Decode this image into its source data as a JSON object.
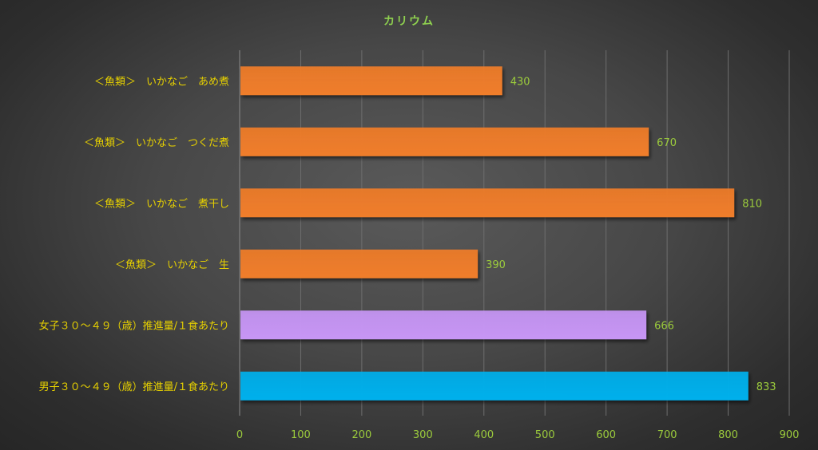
{
  "chart_data": {
    "type": "bar",
    "orientation": "horizontal",
    "title": "カリウム",
    "categories": [
      "＜魚類＞　いかなご　あめ煮",
      "＜魚類＞　いかなご　つくだ煮",
      "＜魚類＞　いかなご　煮干し",
      "＜魚類＞　いかなご　生",
      "女子３０～４９（歳）推進量/１食あたり",
      "男子３０～４９（歳）推進量/１食あたり"
    ],
    "values": [
      430,
      670,
      810,
      390,
      666,
      833
    ],
    "bar_colors": [
      "#f07d2a",
      "#f07d2a",
      "#f07d2a",
      "#f07d2a",
      "#c796f5",
      "#00b0ec"
    ],
    "xlim": [
      0,
      900
    ],
    "xticks": [
      0,
      100,
      200,
      300,
      400,
      500,
      600,
      700,
      800,
      900
    ],
    "grid": true,
    "show_data_labels": true
  }
}
